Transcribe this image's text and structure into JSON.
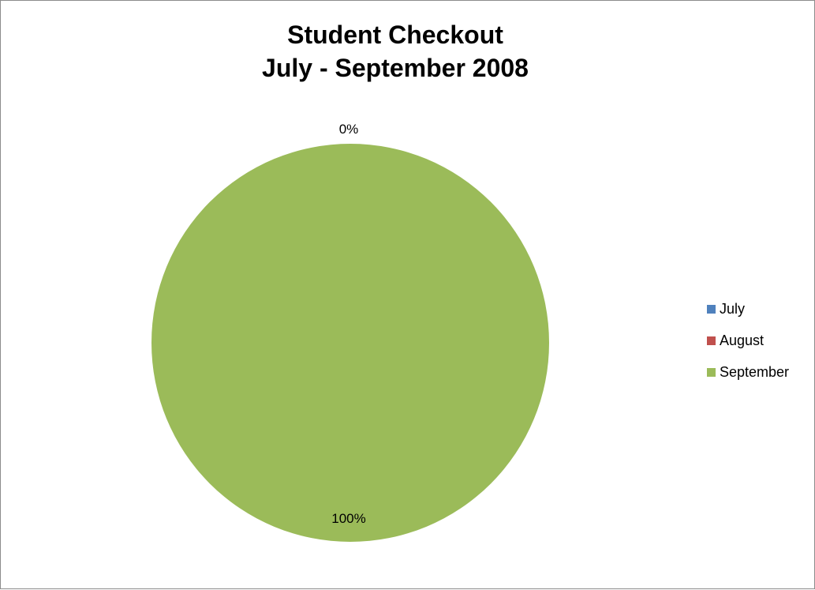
{
  "chart_data": {
    "type": "pie",
    "title": [
      "Student Checkout",
      "July - September 2008"
    ],
    "categories": [
      "July",
      "August",
      "September"
    ],
    "values": [
      0,
      0,
      100
    ],
    "data_labels": [
      "0%",
      "",
      "100%"
    ],
    "colors": [
      "#4f81bd",
      "#c0504d",
      "#9bbb59"
    ],
    "legend_position": "right",
    "unit": "percent"
  }
}
